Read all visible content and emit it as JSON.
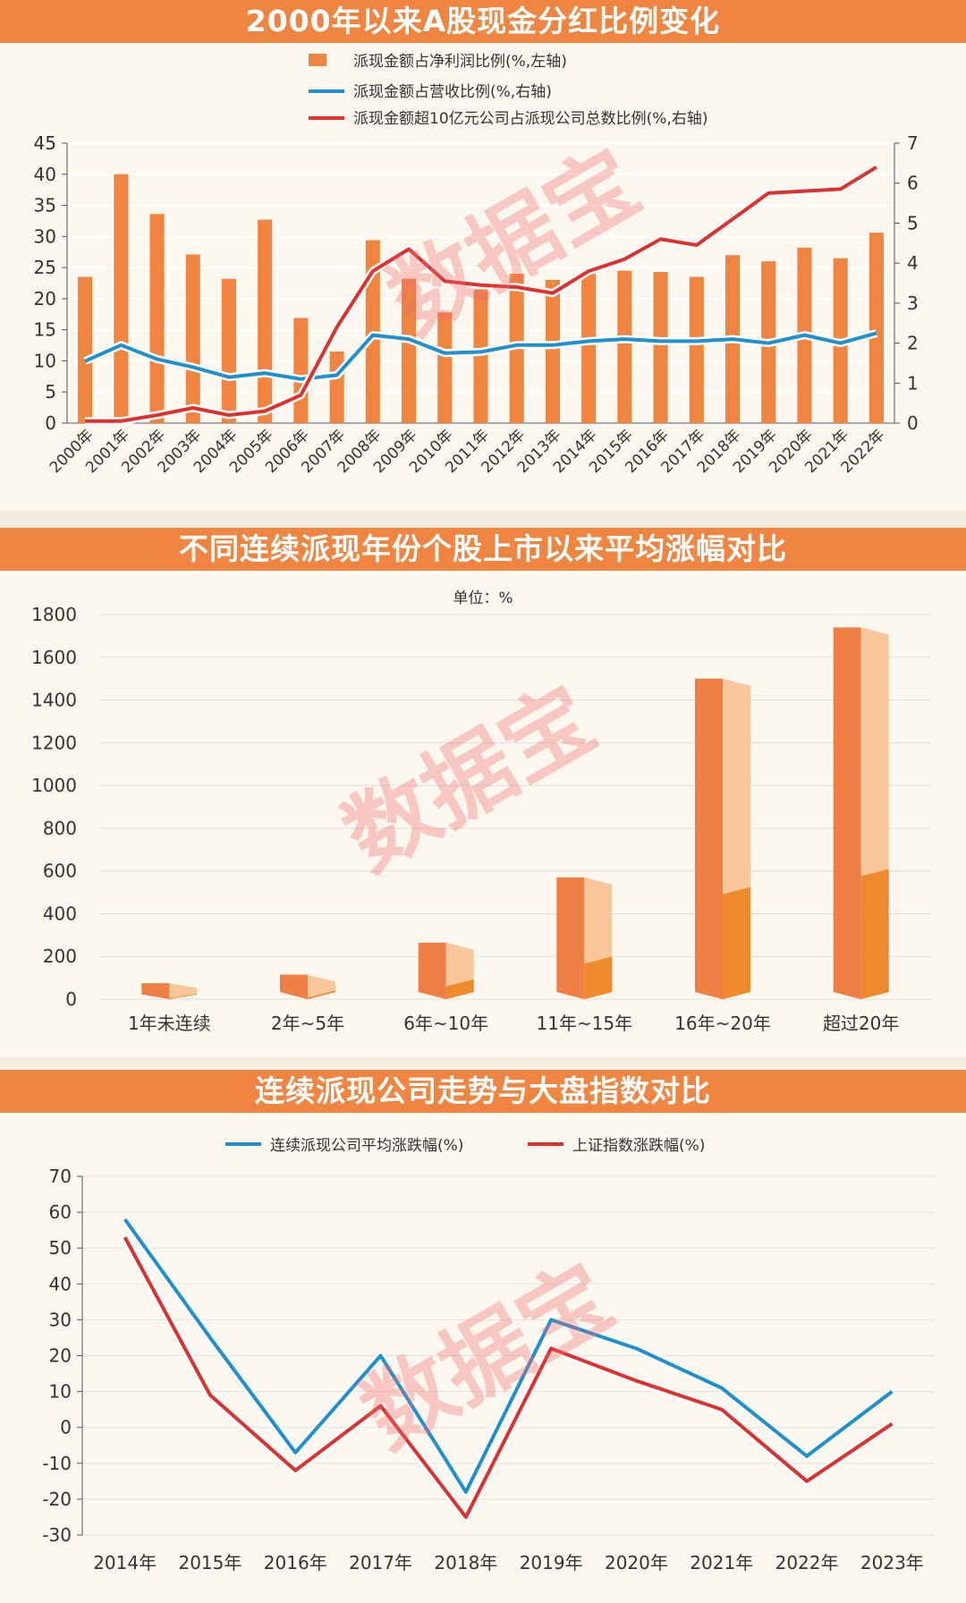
{
  "watermark": "数据宝",
  "colors": {
    "banner": "#ef8541",
    "bar": "#ef8541",
    "bar_light": "#f9c79a",
    "line_blue": "#1e8fcf",
    "line_red": "#e0302e",
    "panel_bg": "#fdf8ef"
  },
  "chart_data": [
    {
      "type": "bar",
      "title": "2000年以来A股现金分红比例变化",
      "categories": [
        "2000年",
        "2001年",
        "2002年",
        "2003年",
        "2004年",
        "2005年",
        "2006年",
        "2007年",
        "2008年",
        "2009年",
        "2010年",
        "2011年",
        "2012年",
        "2013年",
        "2014年",
        "2015年",
        "2016年",
        "2017年",
        "2018年",
        "2019年",
        "2020年",
        "2021年",
        "2022年"
      ],
      "series": [
        {
          "name": "派现金额占净利润比例(%,左轴)",
          "type": "bar",
          "axis": "left",
          "values": [
            23.5,
            40.0,
            33.6,
            27.1,
            23.2,
            32.7,
            16.9,
            11.5,
            29.4,
            23.2,
            17.8,
            21.5,
            24.0,
            23.0,
            24.0,
            24.5,
            24.3,
            23.5,
            27.0,
            26.0,
            28.2,
            26.5,
            30.6
          ]
        },
        {
          "name": "派现金额占营收比例(%,右轴)",
          "type": "line",
          "axis": "right",
          "values": [
            1.55,
            1.95,
            1.6,
            1.4,
            1.15,
            1.25,
            1.1,
            1.2,
            2.2,
            2.1,
            1.75,
            1.78,
            1.95,
            1.95,
            2.05,
            2.1,
            2.05,
            2.05,
            2.1,
            2.0,
            2.2,
            2.0,
            2.25
          ]
        },
        {
          "name": "派现金额超10亿元公司占派现公司总数比例(%,右轴)",
          "type": "line",
          "axis": "right",
          "values": [
            0.05,
            0.05,
            0.2,
            0.38,
            0.2,
            0.3,
            0.7,
            2.4,
            3.8,
            4.35,
            3.55,
            3.45,
            3.4,
            3.25,
            3.8,
            4.1,
            4.6,
            4.45,
            5.1,
            5.75,
            5.8,
            5.85,
            6.4
          ]
        }
      ],
      "ylim_left": [
        0,
        45
      ],
      "yticks_left": [
        "0",
        "5",
        "10",
        "15",
        "20",
        "25",
        "30",
        "35",
        "40",
        "45"
      ],
      "ylim_right": [
        0,
        7
      ],
      "yticks_right": [
        "0",
        "1",
        "2",
        "3",
        "4",
        "5",
        "6",
        "7"
      ]
    },
    {
      "type": "bar",
      "title": "不同连续派现年份个股上市以来平均涨幅对比",
      "subtitle": "单位：%",
      "categories": [
        "1年未连续",
        "2年~5年",
        "6年~10年",
        "11年~15年",
        "16年~20年",
        "超过20年"
      ],
      "values": [
        75,
        115,
        265,
        570,
        1500,
        1740
      ],
      "ylim": [
        0,
        1800
      ],
      "yticks": [
        "0",
        "200",
        "400",
        "600",
        "800",
        "1000",
        "1200",
        "1400",
        "1600",
        "1800"
      ]
    },
    {
      "type": "line",
      "title": "连续派现公司走势与大盘指数对比",
      "categories": [
        "2014年",
        "2015年",
        "2016年",
        "2017年",
        "2018年",
        "2019年",
        "2020年",
        "2021年",
        "2022年",
        "2023年"
      ],
      "series": [
        {
          "name": "连续派现公司平均涨跌幅(%)",
          "values": [
            58,
            25,
            -7,
            20,
            -18,
            30,
            22,
            11,
            -8,
            10
          ]
        },
        {
          "name": "上证指数涨跌幅(%)",
          "values": [
            53,
            9,
            -12,
            6,
            -25,
            22,
            13,
            5,
            -15,
            1
          ]
        }
      ],
      "ylim": [
        -30,
        70
      ],
      "yticks": [
        "-30",
        "-20",
        "-10",
        "0",
        "10",
        "20",
        "30",
        "40",
        "50",
        "60",
        "70"
      ]
    }
  ]
}
